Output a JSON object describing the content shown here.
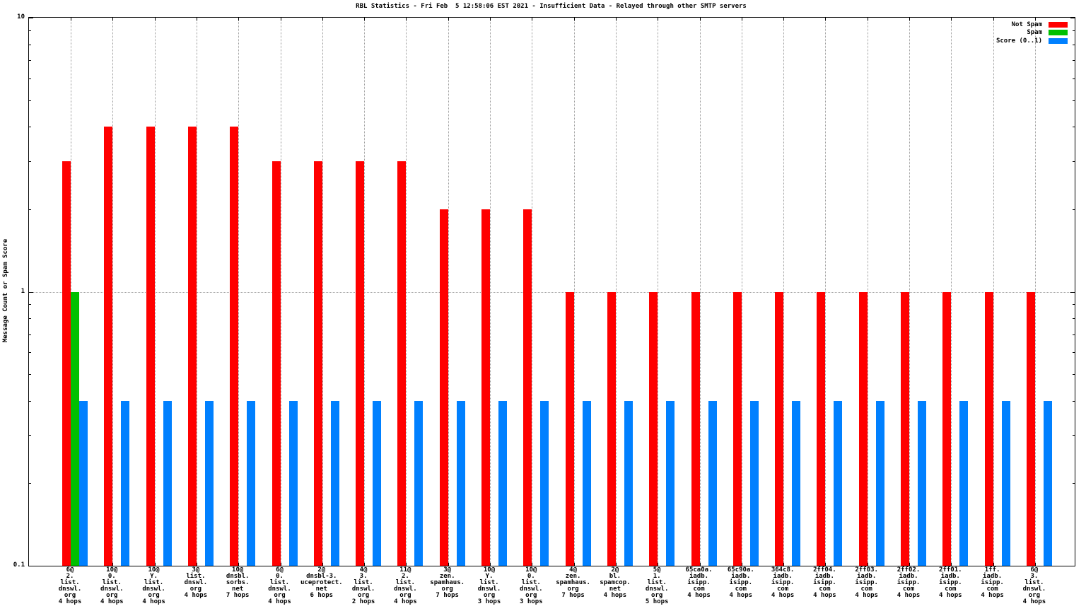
{
  "chart_data": {
    "type": "bar",
    "title": "RBL Statistics - Fri Feb  5 12:58:06 EST 2021 - Insufficient Data - Relayed through other SMTP servers",
    "ylabel": "Message Count or Spam Score",
    "xlabel": "",
    "yscale": "log10",
    "ylim": [
      0.1,
      10
    ],
    "ytick_labels": [
      "10",
      "1",
      "0.1"
    ],
    "ytick_values": [
      10,
      1,
      0.1
    ],
    "yminor_tick_values": [
      0.2,
      0.3,
      0.4,
      0.5,
      0.6,
      0.7,
      0.8,
      0.9,
      2,
      3,
      4,
      5,
      6,
      7,
      8,
      9
    ],
    "grid": {
      "horizontal_line_at": 1,
      "vertical_lines": "every category",
      "style": "dotted gray"
    },
    "legend_position": "top-right-inside",
    "border_color": "#000000",
    "grid_color": "#9a9a9a",
    "categories": [
      [
        "6@",
        "2.",
        "list.",
        "dnswl.",
        "org",
        "4 hops"
      ],
      [
        "10@",
        "0.",
        "list.",
        "dnswl.",
        "org",
        "4 hops"
      ],
      [
        "10@",
        "Y.",
        "list.",
        "dnswl.",
        "org",
        "4 hops"
      ],
      [
        "3@",
        "list.",
        "dnswl.",
        "org",
        "4 hops"
      ],
      [
        "10@",
        "dnsbl.",
        "sorbs.",
        "net",
        "7 hops"
      ],
      [
        "6@",
        "0.",
        "list.",
        "dnswl.",
        "org",
        "4 hops"
      ],
      [
        "2@",
        "dnsbl-3.",
        "uceprotect.",
        "net",
        "6 hops"
      ],
      [
        "4@",
        "3.",
        "list.",
        "dnswl.",
        "org",
        "2 hops"
      ],
      [
        "11@",
        "2.",
        "list.",
        "dnswl.",
        "org",
        "4 hops"
      ],
      [
        "3@",
        "zen.",
        "spamhaus.",
        "org",
        "7 hops"
      ],
      [
        "10@",
        "Y.",
        "list.",
        "dnswl.",
        "org",
        "3 hops"
      ],
      [
        "10@",
        "0.",
        "list.",
        "dnswl.",
        "org",
        "3 hops"
      ],
      [
        "4@",
        "zen.",
        "spamhaus.",
        "org",
        "7 hops"
      ],
      [
        "2@",
        "bl.",
        "spamcop.",
        "net",
        "4 hops"
      ],
      [
        "5@",
        "1.",
        "list.",
        "dnswl.",
        "org",
        "5 hops"
      ],
      [
        "65ca0a.",
        "iadb.",
        "isipp.",
        "com",
        "4 hops"
      ],
      [
        "65c90a.",
        "iadb.",
        "isipp.",
        "com",
        "4 hops"
      ],
      [
        "364c8.",
        "iadb.",
        "isipp.",
        "com",
        "4 hops"
      ],
      [
        "2ff04.",
        "iadb.",
        "isipp.",
        "com",
        "4 hops"
      ],
      [
        "2ff03.",
        "iadb.",
        "isipp.",
        "com",
        "4 hops"
      ],
      [
        "2ff02.",
        "iadb.",
        "isipp.",
        "com",
        "4 hops"
      ],
      [
        "2ff01.",
        "iadb.",
        "isipp.",
        "com",
        "4 hops"
      ],
      [
        "1ff.",
        "iadb.",
        "isipp.",
        "com",
        "4 hops"
      ],
      [
        "6@",
        "3.",
        "list.",
        "dnswl.",
        "org",
        "4 hops"
      ]
    ],
    "series": [
      {
        "name": "Not Spam",
        "color": "#ff0000",
        "values": [
          3,
          4,
          4,
          4,
          4,
          3,
          3,
          3,
          3,
          2,
          2,
          2,
          1,
          1,
          1,
          1,
          1,
          1,
          1,
          1,
          1,
          1,
          1,
          1
        ]
      },
      {
        "name": "Spam",
        "color": "#00c000",
        "values": [
          1,
          0,
          0,
          0,
          0,
          0,
          0,
          0,
          0,
          0,
          0,
          0,
          0,
          0,
          0,
          0,
          0,
          0,
          0,
          0,
          0,
          0,
          0,
          0
        ]
      },
      {
        "name": "Score (0..1)",
        "color": "#0080ff",
        "values": [
          0.4,
          0.4,
          0.4,
          0.4,
          0.4,
          0.4,
          0.4,
          0.4,
          0.4,
          0.4,
          0.4,
          0.4,
          0.4,
          0.4,
          0.4,
          0.4,
          0.4,
          0.4,
          0.4,
          0.4,
          0.4,
          0.4,
          0.4,
          0.4
        ]
      }
    ]
  }
}
